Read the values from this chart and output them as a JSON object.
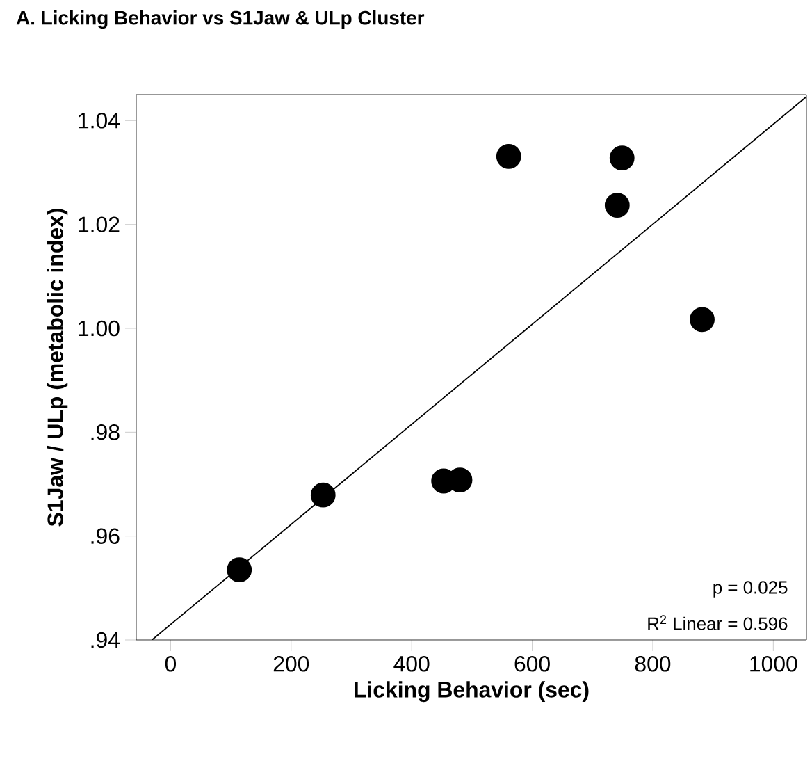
{
  "chart_data": {
    "type": "scatter",
    "title": "A. Licking Behavior vs S1Jaw & ULp Cluster",
    "xlabel": "Licking Behavior (sec)",
    "ylabel": "S1Jaw / ULp (metabolic index)",
    "xlim": [
      -57,
      1055
    ],
    "ylim": [
      0.94,
      1.045
    ],
    "xticks": [
      0,
      200,
      400,
      600,
      800,
      1000
    ],
    "yticks": [
      {
        "value": 0.94,
        "label": ".94"
      },
      {
        "value": 0.96,
        "label": ".96"
      },
      {
        "value": 0.98,
        "label": ".98"
      },
      {
        "value": 1.0,
        "label": "1.00"
      },
      {
        "value": 1.02,
        "label": "1.02"
      },
      {
        "value": 1.04,
        "label": "1.04"
      }
    ],
    "grid": false,
    "annotations": [
      "p = 0.025",
      "R$^{2}$ Linear = 0.596"
    ],
    "series": [
      {
        "color": "#000000",
        "marker": "circle",
        "x": [
          114,
          253,
          453,
          480,
          561,
          741,
          749,
          882
        ],
        "values": [
          0.9535,
          0.9679,
          0.9706,
          0.9708,
          1.0331,
          1.0237,
          1.0328,
          1.0017
        ]
      },
      {
        "type": "line",
        "color": "#000000",
        "marker": "none",
        "x": [
          -31,
          1055
        ],
        "values": [
          0.94,
          1.0446
        ]
      }
    ]
  }
}
